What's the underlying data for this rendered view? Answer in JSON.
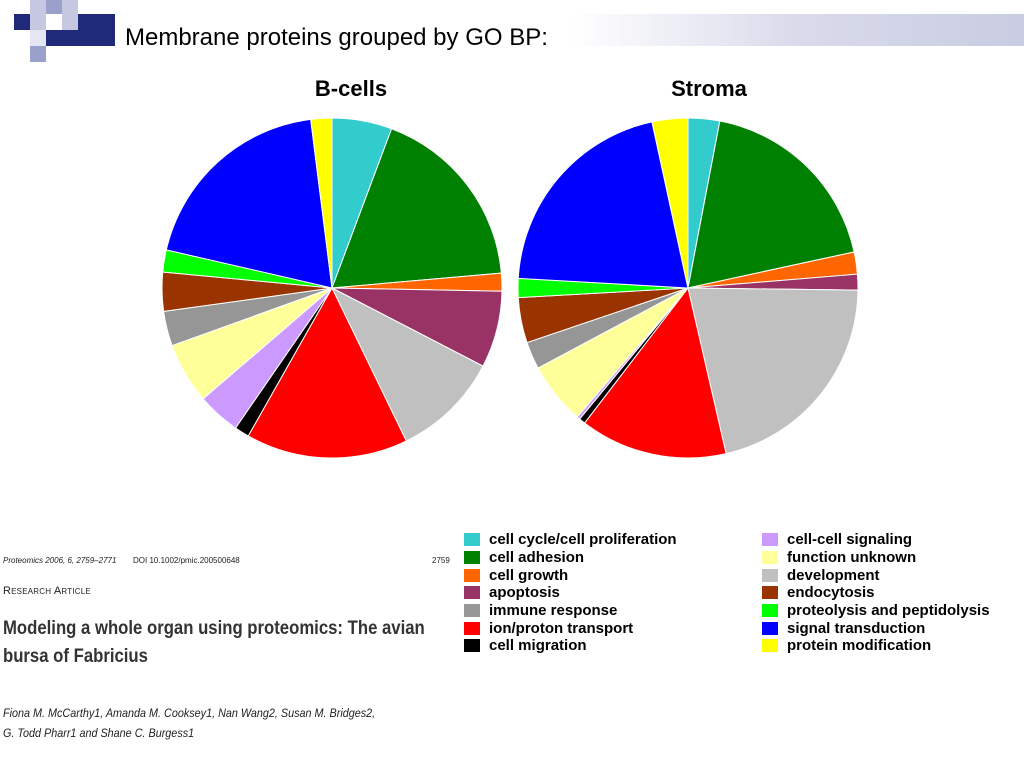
{
  "slide": {
    "title": "Membrane proteins grouped by GO BP:"
  },
  "colors": {
    "cell_cycle": "#33cccc",
    "cell_adhesion": "#008000",
    "cell_growth": "#ff6600",
    "apoptosis": "#993366",
    "immune_response": "#969696",
    "ion_transport": "#ff0000",
    "cell_migration": "#000000",
    "cell_cell_signaling": "#cc99ff",
    "function_unknown": "#ffff99",
    "development": "#c0c0c0",
    "endocytosis": "#993300",
    "proteolysis": "#00ff00",
    "signal_transduction": "#0000ff",
    "protein_modification": "#ffff00"
  },
  "chart_data": [
    {
      "type": "pie",
      "title": "B-cells",
      "slices": [
        {
          "label": "cell cycle/cell proliferation",
          "value": 5.7,
          "color": "#33cccc"
        },
        {
          "label": "cell adhesion",
          "value": 17.9,
          "color": "#008000"
        },
        {
          "label": "cell growth",
          "value": 1.7,
          "color": "#ff6600"
        },
        {
          "label": "apoptosis",
          "value": 7.3,
          "color": "#993366"
        },
        {
          "label": "development",
          "value": 10.2,
          "color": "#c0c0c0"
        },
        {
          "label": "ion/proton transport",
          "value": 15.4,
          "color": "#ff0000"
        },
        {
          "label": "cell migration",
          "value": 1.4,
          "color": "#000000"
        },
        {
          "label": "cell-cell signaling",
          "value": 4.1,
          "color": "#cc99ff"
        },
        {
          "label": "function unknown",
          "value": 5.8,
          "color": "#ffff99"
        },
        {
          "label": "immune response",
          "value": 3.3,
          "color": "#969696"
        },
        {
          "label": "endocytosis",
          "value": 3.7,
          "color": "#993300"
        },
        {
          "label": "proteolysis and peptidolysis",
          "value": 2.1,
          "color": "#00ff00"
        },
        {
          "label": "signal transduction",
          "value": 19.4,
          "color": "#0000ff"
        },
        {
          "label": "protein modification",
          "value": 2.0,
          "color": "#ffff00"
        }
      ]
    },
    {
      "type": "pie",
      "title": "Stroma",
      "slices": [
        {
          "label": "cell cycle/cell proliferation",
          "value": 3.0,
          "color": "#33cccc"
        },
        {
          "label": "cell adhesion",
          "value": 18.6,
          "color": "#008000"
        },
        {
          "label": "cell growth",
          "value": 2.1,
          "color": "#ff6600"
        },
        {
          "label": "apoptosis",
          "value": 1.5,
          "color": "#993366"
        },
        {
          "label": "development",
          "value": 21.2,
          "color": "#c0c0c0"
        },
        {
          "label": "ion/proton transport",
          "value": 14.0,
          "color": "#ff0000"
        },
        {
          "label": "cell migration",
          "value": 0.6,
          "color": "#000000"
        },
        {
          "label": "cell-cell signaling",
          "value": 0.3,
          "color": "#cc99ff"
        },
        {
          "label": "function unknown",
          "value": 5.9,
          "color": "#ffff99"
        },
        {
          "label": "immune response",
          "value": 2.6,
          "color": "#969696"
        },
        {
          "label": "endocytosis",
          "value": 4.3,
          "color": "#993300"
        },
        {
          "label": "proteolysis and peptidolysis",
          "value": 1.8,
          "color": "#00ff00"
        },
        {
          "label": "signal transduction",
          "value": 20.7,
          "color": "#0000ff"
        },
        {
          "label": "protein modification",
          "value": 3.4,
          "color": "#ffff00"
        }
      ]
    }
  ],
  "legend": {
    "left": [
      {
        "label": "cell cycle/cell proliferation",
        "color": "#33cccc"
      },
      {
        "label": "cell adhesion",
        "color": "#008000"
      },
      {
        "label": "cell growth",
        "color": "#ff6600"
      },
      {
        "label": "apoptosis",
        "color": "#993366"
      },
      {
        "label": "immune response",
        "color": "#969696"
      },
      {
        "label": "ion/proton transport",
        "color": "#ff0000"
      },
      {
        "label": "cell migration",
        "color": "#000000"
      }
    ],
    "right": [
      {
        "label": "cell-cell signaling",
        "color": "#cc99ff"
      },
      {
        "label": "function unknown",
        "color": "#ffff99"
      },
      {
        "label": "development",
        "color": "#c0c0c0"
      },
      {
        "label": "endocytosis",
        "color": "#993300"
      },
      {
        "label": "proteolysis and peptidolysis",
        "color": "#00ff00"
      },
      {
        "label": "signal transduction",
        "color": "#0000ff"
      },
      {
        "label": "protein modification",
        "color": "#ffff00"
      }
    ]
  },
  "article": {
    "journal": "Proteomics 2006, 6, 2759–2771",
    "doi": "DOI 10.1002/pmic.200500648",
    "page": "2759",
    "kind": "Research Article",
    "title_line1": "Modeling a whole organ using proteomics: The avian",
    "title_line2": "bursa of Fabricius",
    "authors_line1": "Fiona M. McCarthy1, Amanda M. Cooksey1, Nan Wang2, Susan M. Bridges2,",
    "authors_line2": "G. Todd Pharr1 and Shane C. Burgess1"
  }
}
